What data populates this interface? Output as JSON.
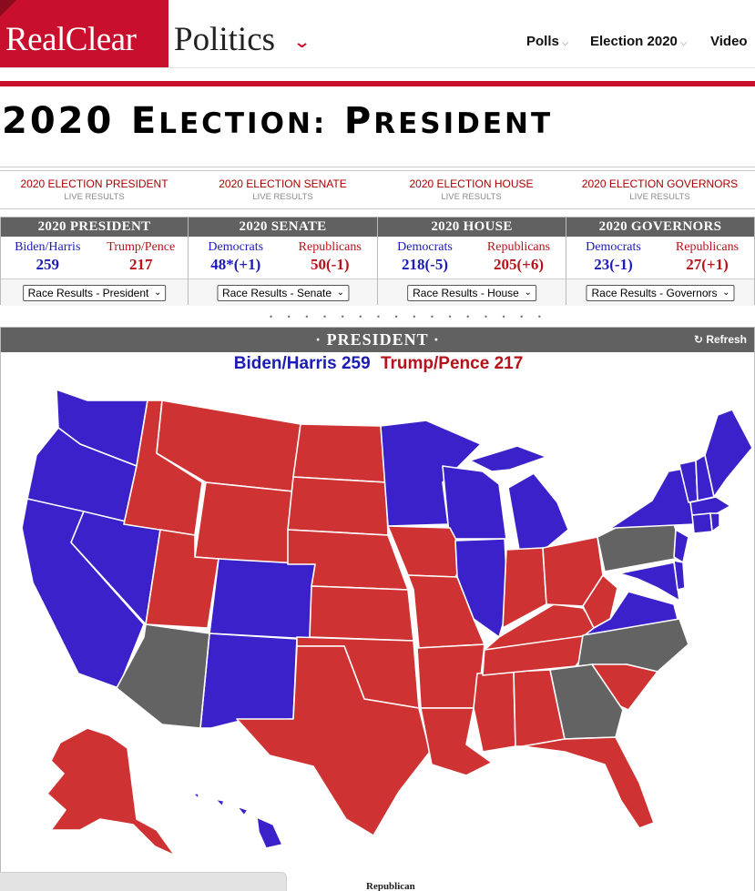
{
  "brand": {
    "part1": "RealClear",
    "part2": "Politics"
  },
  "nav": [
    {
      "label": "Polls",
      "dropdown": true
    },
    {
      "label": "Election 2020",
      "dropdown": true
    },
    {
      "label": "Video",
      "dropdown": false
    }
  ],
  "title": {
    "year": "2020",
    "word1_first": "E",
    "word1_rest": "LECTION:",
    "word2_first": "P",
    "word2_rest": "RESIDENT"
  },
  "sublinks": [
    {
      "title": "2020 ELECTION PRESIDENT",
      "sub": "LIVE RESULTS"
    },
    {
      "title": "2020 ELECTION SENATE",
      "sub": "LIVE RESULTS"
    },
    {
      "title": "2020 ELECTION HOUSE",
      "sub": "LIVE RESULTS"
    },
    {
      "title": "2020 ELECTION GOVERNORS",
      "sub": "LIVE RESULTS"
    }
  ],
  "summaries": [
    {
      "header": "2020 PRESIDENT",
      "left_name": "Biden/Harris",
      "left_value": "259",
      "right_name": "Trump/Pence",
      "right_value": "217",
      "select": "Race Results - President"
    },
    {
      "header": "2020 SENATE",
      "left_name": "Democrats",
      "left_value": "48*(+1)",
      "right_name": "Republicans",
      "right_value": "50(-1)",
      "select": "Race Results - Senate"
    },
    {
      "header": "2020 HOUSE",
      "left_name": "Democrats",
      "left_value": "218(-5)",
      "right_name": "Republicans",
      "right_value": "205(+6)",
      "select": "Race Results - House"
    },
    {
      "header": "2020 GOVERNORS",
      "left_name": "Democrats",
      "left_value": "23(-1)",
      "right_name": "Republicans",
      "right_value": "27(+1)",
      "select": "Race Results - Governors"
    }
  ],
  "map": {
    "header": "· PRESIDENT ·",
    "refresh": "Refresh",
    "dem_label": "Biden/Harris 259",
    "rep_label": "Trump/Pence 217",
    "legend_caption": "Republican",
    "colors": {
      "dem": "#3a21c9",
      "rep": "#cf3232",
      "tossup": "#636363"
    },
    "dem_states": [
      "WA",
      "OR",
      "CA",
      "NV",
      "CO",
      "NM",
      "MN",
      "WI",
      "MI",
      "IL",
      "VA",
      "NY",
      "PA-neighbors NJ",
      "MD",
      "DE",
      "ME",
      "VT",
      "NH",
      "MA",
      "CT",
      "RI",
      "HI"
    ],
    "rep_states": [
      "ID",
      "MT",
      "WY",
      "UT",
      "ND",
      "SD",
      "NE",
      "KS",
      "OK",
      "TX",
      "IA",
      "MO",
      "AR",
      "LA",
      "MS",
      "AL",
      "TN",
      "KY",
      "IN",
      "OH",
      "WV",
      "SC",
      "FL",
      "AK"
    ],
    "tossup_states": [
      "AZ",
      "PA",
      "NC",
      "GA"
    ]
  }
}
